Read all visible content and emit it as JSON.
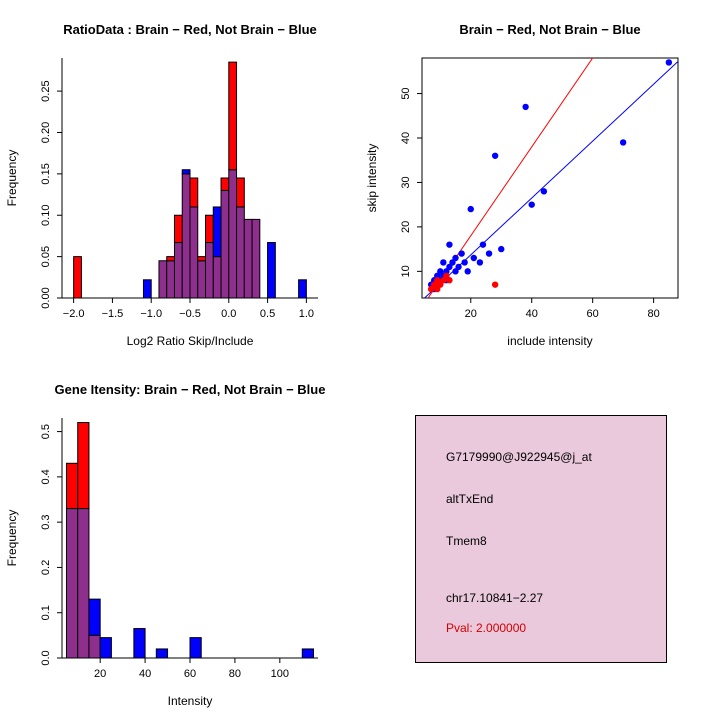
{
  "figure": {
    "bg_color": "#FFFFFF"
  },
  "colors": {
    "brain": "#FF0000",
    "not_brain": "#0000FF",
    "overlap": "#8E2F8E",
    "axis": "#000000"
  },
  "chart_data": [
    {
      "id": "ratio-histogram",
      "type": "bar",
      "title": "RatioData : Brain − Red, Not Brain − Blue",
      "xlabel": "Log2 Ratio Skip/Include",
      "ylabel": "Frequency",
      "xlim": [
        -2.15,
        1.15
      ],
      "ylim": [
        0,
        0.29
      ],
      "xticks": [
        -2.0,
        -1.5,
        -1.0,
        -0.5,
        0.0,
        0.5,
        1.0
      ],
      "xtick_labels": [
        "−2.0",
        "−1.5",
        "−1.0",
        "−0.5",
        "0.0",
        "0.5",
        "1.0"
      ],
      "yticks": [
        0,
        0.05,
        0.1,
        0.15,
        0.2,
        0.25
      ],
      "ytick_labels": [
        "0.00",
        "0.05",
        "0.10",
        "0.15",
        "0.20",
        "0.25"
      ],
      "bin_width": 0.1,
      "series_legend": [
        {
          "name": "Brain",
          "color": "#FF0000"
        },
        {
          "name": "Not Brain",
          "color": "#0000FF"
        }
      ],
      "bars": [
        {
          "x": -2.0,
          "red": 0.05,
          "blue": 0
        },
        {
          "x": -1.1,
          "red": 0,
          "blue": 0.022
        },
        {
          "x": -0.9,
          "red": 0.045,
          "blue": 0.045
        },
        {
          "x": -0.8,
          "red": 0.05,
          "blue": 0.045
        },
        {
          "x": -0.7,
          "red": 0.1,
          "blue": 0.067
        },
        {
          "x": -0.6,
          "red": 0.15,
          "blue": 0.155
        },
        {
          "x": -0.5,
          "red": 0.145,
          "blue": 0.11
        },
        {
          "x": -0.4,
          "red": 0.05,
          "blue": 0.045
        },
        {
          "x": -0.3,
          "red": 0.1,
          "blue": 0.067
        },
        {
          "x": -0.2,
          "red": 0.05,
          "blue": 0.11
        },
        {
          "x": -0.1,
          "red": 0.145,
          "blue": 0.13
        },
        {
          "x": 0.0,
          "red": 0.285,
          "blue": 0.155
        },
        {
          "x": 0.1,
          "red": 0.145,
          "blue": 0.11
        },
        {
          "x": 0.2,
          "red": 0.095,
          "blue": 0.095
        },
        {
          "x": 0.3,
          "red": 0.095,
          "blue": 0.095
        },
        {
          "x": 0.5,
          "red": 0,
          "blue": 0.067
        },
        {
          "x": 0.9,
          "red": 0,
          "blue": 0.022
        }
      ]
    },
    {
      "id": "intensity-scatter",
      "type": "scatter",
      "title": "Brain − Red, Not Brain − Blue",
      "xlabel": "include intensity",
      "ylabel": "skip intensity",
      "xlim": [
        4,
        88
      ],
      "ylim": [
        4,
        58
      ],
      "xticks": [
        20,
        40,
        60,
        80
      ],
      "xtick_labels": [
        "20",
        "40",
        "60",
        "80"
      ],
      "yticks": [
        10,
        20,
        30,
        40,
        50
      ],
      "ytick_labels": [
        "10",
        "20",
        "30",
        "40",
        "50"
      ],
      "series": [
        {
          "name": "Not Brain",
          "color": "#0000FF",
          "points": [
            [
              7,
              7
            ],
            [
              8,
              8
            ],
            [
              8,
              6
            ],
            [
              9,
              9
            ],
            [
              9,
              7
            ],
            [
              10,
              8
            ],
            [
              10,
              10
            ],
            [
              11,
              9
            ],
            [
              11,
              12
            ],
            [
              12,
              10
            ],
            [
              12,
              8
            ],
            [
              13,
              11
            ],
            [
              13,
              16
            ],
            [
              14,
              12
            ],
            [
              15,
              10
            ],
            [
              15,
              13
            ],
            [
              16,
              11
            ],
            [
              17,
              14
            ],
            [
              18,
              12
            ],
            [
              19,
              10
            ],
            [
              20,
              24
            ],
            [
              21,
              13
            ],
            [
              23,
              12
            ],
            [
              24,
              16
            ],
            [
              26,
              14
            ],
            [
              28,
              36
            ],
            [
              30,
              15
            ],
            [
              38,
              47
            ],
            [
              40,
              25
            ],
            [
              44,
              28
            ],
            [
              70,
              39
            ],
            [
              85,
              57
            ]
          ]
        },
        {
          "name": "Brain",
          "color": "#FF0000",
          "points": [
            [
              7,
              6
            ],
            [
              8,
              7
            ],
            [
              9,
              6
            ],
            [
              9,
              8
            ],
            [
              10,
              7
            ],
            [
              11,
              8
            ],
            [
              12,
              9
            ],
            [
              13,
              8
            ],
            [
              28,
              7
            ]
          ]
        }
      ],
      "fit_lines": [
        {
          "name": "brain-fit",
          "color": "#FF0000",
          "slope": 1.0,
          "intercept": -2
        },
        {
          "name": "not-brain-fit",
          "color": "#0000FF",
          "slope": 0.64,
          "intercept": 0.9
        }
      ]
    },
    {
      "id": "gene-intensity-histogram",
      "type": "bar",
      "title": "Gene Itensity: Brain − Red, Not Brain − Blue",
      "xlabel": "Intensity",
      "ylabel": "Frequency",
      "xlim": [
        3,
        117
      ],
      "ylim": [
        0,
        0.53
      ],
      "xticks": [
        20,
        40,
        60,
        80,
        100
      ],
      "xtick_labels": [
        "20",
        "40",
        "60",
        "80",
        "100"
      ],
      "yticks": [
        0,
        0.1,
        0.2,
        0.3,
        0.4,
        0.5
      ],
      "ytick_labels": [
        "0.0",
        "0.1",
        "0.2",
        "0.3",
        "0.4",
        "0.5"
      ],
      "bin_width": 5,
      "series_legend": [
        {
          "name": "Brain",
          "color": "#FF0000"
        },
        {
          "name": "Not Brain",
          "color": "#0000FF"
        }
      ],
      "bars": [
        {
          "x": 5,
          "red": 0.43,
          "blue": 0.33
        },
        {
          "x": 10,
          "red": 0.52,
          "blue": 0.33
        },
        {
          "x": 15,
          "red": 0.05,
          "blue": 0.13
        },
        {
          "x": 20,
          "red": 0,
          "blue": 0.045
        },
        {
          "x": 35,
          "red": 0,
          "blue": 0.065
        },
        {
          "x": 45,
          "red": 0,
          "blue": 0.02
        },
        {
          "x": 60,
          "red": 0,
          "blue": 0.045
        },
        {
          "x": 110,
          "red": 0,
          "blue": 0.02
        }
      ]
    }
  ],
  "info_box": {
    "bg_color": "#E9C9DB",
    "border_color": "#000000",
    "pval_color": "#D40000",
    "lines": [
      "G7179990@J922945@j_at",
      "altTxEnd",
      "Tmem8",
      "chr17.10841−2.27",
      "Pval: 2.000000"
    ]
  }
}
